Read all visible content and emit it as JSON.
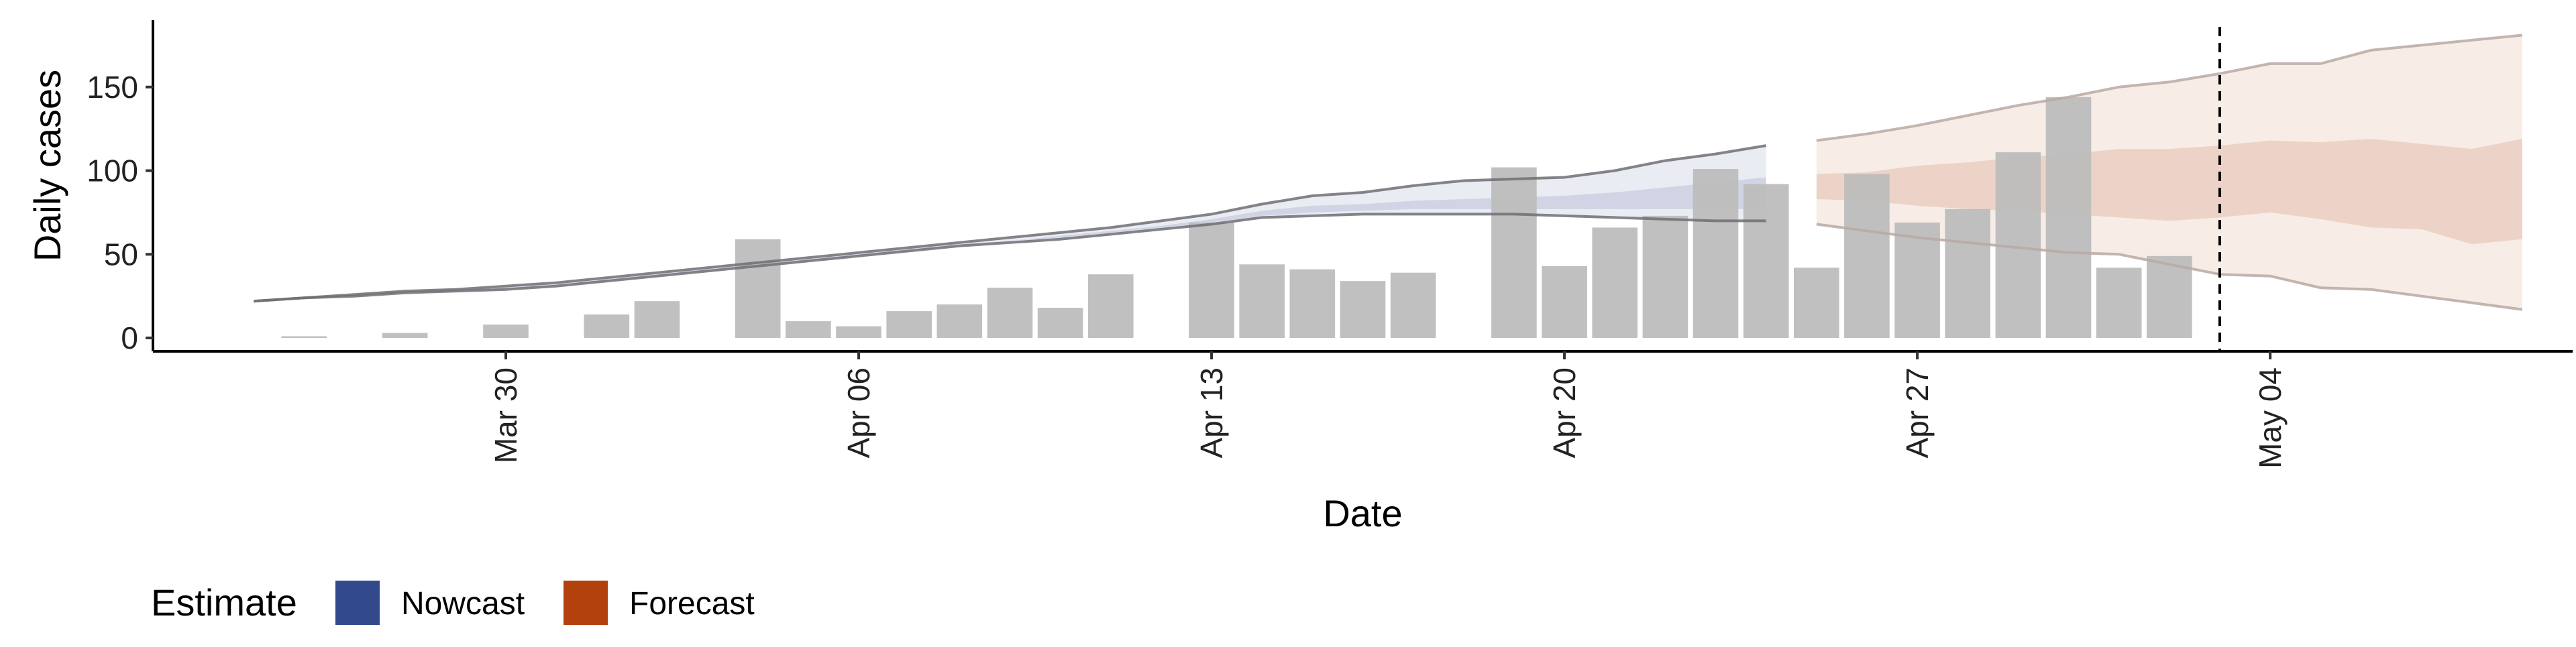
{
  "chart_data": {
    "type": "bar",
    "xlabel": "Date",
    "ylabel": "Daily cases",
    "x_axis_type": "date",
    "xlim": [
      "2020-03-23",
      "2020-05-10"
    ],
    "ylim": [
      -8,
      190
    ],
    "y_ticks": [
      0,
      50,
      100,
      150
    ],
    "x_ticks": [
      {
        "date": "2020-03-30",
        "label": "Mar 30"
      },
      {
        "date": "2020-04-06",
        "label": "Apr 06"
      },
      {
        "date": "2020-04-13",
        "label": "Apr 13"
      },
      {
        "date": "2020-04-20",
        "label": "Apr 20"
      },
      {
        "date": "2020-04-27",
        "label": "Apr 27"
      },
      {
        "date": "2020-05-04",
        "label": "May 04"
      }
    ],
    "grid": false,
    "bar_color": "#BDBDBD",
    "reference_line": {
      "date": "2020-05-03",
      "style": "dashed",
      "color": "#000000"
    },
    "reported_cases": [
      {
        "date": "2020-03-26",
        "value": 1
      },
      {
        "date": "2020-03-28",
        "value": 3
      },
      {
        "date": "2020-03-30",
        "value": 8
      },
      {
        "date": "2020-04-01",
        "value": 14
      },
      {
        "date": "2020-04-02",
        "value": 22
      },
      {
        "date": "2020-04-04",
        "value": 59
      },
      {
        "date": "2020-04-05",
        "value": 10
      },
      {
        "date": "2020-04-06",
        "value": 7
      },
      {
        "date": "2020-04-07",
        "value": 16
      },
      {
        "date": "2020-04-08",
        "value": 20
      },
      {
        "date": "2020-04-09",
        "value": 30
      },
      {
        "date": "2020-04-10",
        "value": 18
      },
      {
        "date": "2020-04-11",
        "value": 38
      },
      {
        "date": "2020-04-13",
        "value": 69
      },
      {
        "date": "2020-04-14",
        "value": 44
      },
      {
        "date": "2020-04-15",
        "value": 41
      },
      {
        "date": "2020-04-16",
        "value": 34
      },
      {
        "date": "2020-04-17",
        "value": 39
      },
      {
        "date": "2020-04-19",
        "value": 102
      },
      {
        "date": "2020-04-20",
        "value": 43
      },
      {
        "date": "2020-04-21",
        "value": 66
      },
      {
        "date": "2020-04-22",
        "value": 73
      },
      {
        "date": "2020-04-23",
        "value": 101
      },
      {
        "date": "2020-04-24",
        "value": 92
      },
      {
        "date": "2020-04-25",
        "value": 42
      },
      {
        "date": "2020-04-26",
        "value": 98
      },
      {
        "date": "2020-04-27",
        "value": 69
      },
      {
        "date": "2020-04-28",
        "value": 77
      },
      {
        "date": "2020-04-29",
        "value": 111
      },
      {
        "date": "2020-04-30",
        "value": 144
      },
      {
        "date": "2020-05-01",
        "value": 42
      },
      {
        "date": "2020-05-02",
        "value": 49
      }
    ],
    "series": [
      {
        "name": "Nowcast",
        "color": "#32498B",
        "dates": [
          "2020-03-25",
          "2020-03-26",
          "2020-03-27",
          "2020-03-28",
          "2020-03-29",
          "2020-03-30",
          "2020-03-31",
          "2020-04-01",
          "2020-04-02",
          "2020-04-03",
          "2020-04-04",
          "2020-04-05",
          "2020-04-06",
          "2020-04-07",
          "2020-04-08",
          "2020-04-09",
          "2020-04-10",
          "2020-04-11",
          "2020-04-12",
          "2020-04-13",
          "2020-04-14",
          "2020-04-15",
          "2020-04-16",
          "2020-04-17",
          "2020-04-18",
          "2020-04-19",
          "2020-04-20",
          "2020-04-21",
          "2020-04-22",
          "2020-04-23",
          "2020-04-24"
        ],
        "upper_90": [
          22,
          24,
          26,
          28,
          29,
          31,
          33,
          36,
          39,
          42,
          45,
          48,
          51,
          54,
          57,
          60,
          63,
          66,
          70,
          74,
          80,
          85,
          87,
          91,
          94,
          95,
          96,
          100,
          106,
          110,
          115
        ],
        "lower_90": [
          22,
          24,
          25,
          27,
          28,
          29,
          31,
          34,
          37,
          40,
          43,
          46,
          49,
          52,
          55,
          57,
          59,
          62,
          65,
          68,
          72,
          73,
          74,
          74,
          74,
          74,
          73,
          72,
          71,
          70,
          70
        ],
        "upper_50": [
          22,
          24,
          25,
          27,
          28,
          30,
          32,
          35,
          38,
          41,
          44,
          47,
          50,
          53,
          56,
          58,
          61,
          64,
          67,
          71,
          76,
          79,
          80,
          82,
          83,
          84,
          85,
          87,
          90,
          93,
          96
        ],
        "lower_50": [
          22,
          24,
          25,
          27,
          28,
          29,
          31,
          34,
          37,
          40,
          43,
          46,
          49,
          52,
          55,
          58,
          60,
          63,
          66,
          69,
          73,
          75,
          76,
          77,
          77,
          77,
          77,
          77,
          77,
          77,
          77
        ]
      },
      {
        "name": "Forecast",
        "color": "#B2410E",
        "dates": [
          "2020-04-25",
          "2020-04-26",
          "2020-04-27",
          "2020-04-28",
          "2020-04-29",
          "2020-04-30",
          "2020-05-01",
          "2020-05-02",
          "2020-05-03",
          "2020-05-04",
          "2020-05-05",
          "2020-05-06",
          "2020-05-07",
          "2020-05-08",
          "2020-05-09"
        ],
        "upper_90": [
          118,
          122,
          127,
          133,
          139,
          144,
          150,
          153,
          158,
          164,
          164,
          172,
          175,
          178,
          181
        ],
        "lower_90": [
          68,
          64,
          60,
          57,
          54,
          51,
          50,
          44,
          38,
          37,
          30,
          29,
          25,
          21,
          17
        ],
        "upper_50": [
          98,
          99,
          103,
          105,
          108,
          110,
          113,
          113,
          115,
          118,
          117,
          119,
          116,
          113,
          119
        ],
        "lower_50": [
          83,
          82,
          79,
          77,
          76,
          74,
          72,
          70,
          72,
          75,
          71,
          66,
          65,
          56,
          59
        ]
      }
    ],
    "legend": {
      "title": "Estimate",
      "position": "bottom-left",
      "items": [
        {
          "label": "Nowcast",
          "color": "#32498B"
        },
        {
          "label": "Forecast",
          "color": "#B2410E"
        }
      ]
    }
  }
}
